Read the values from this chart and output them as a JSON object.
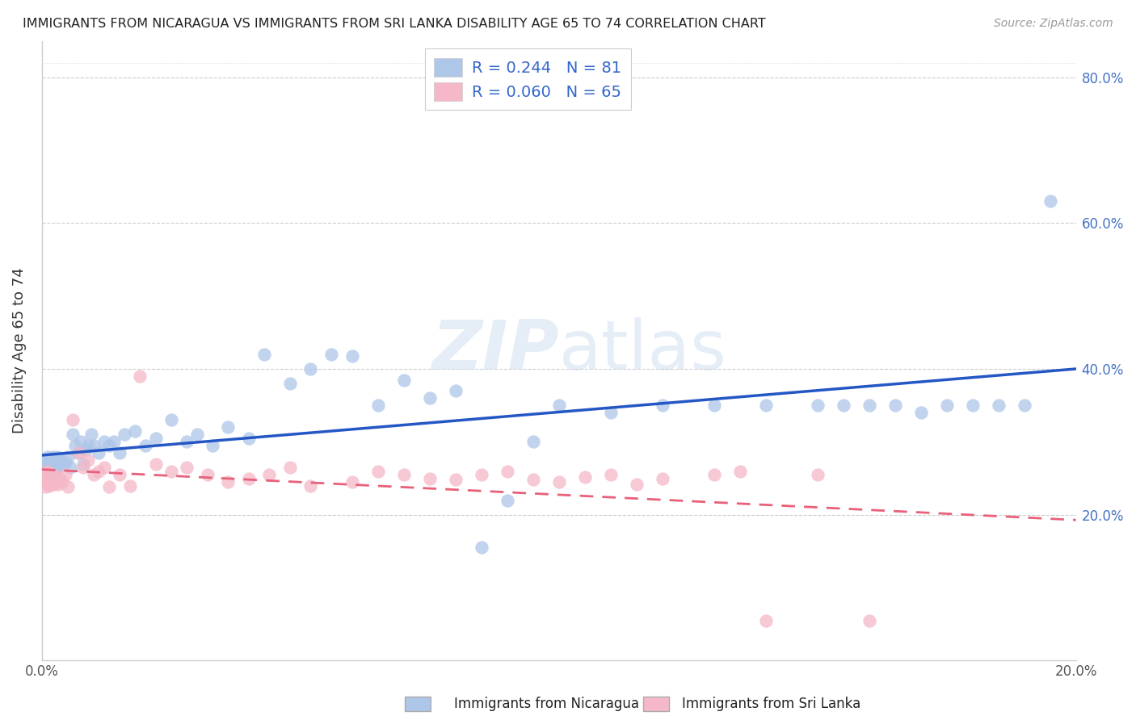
{
  "title": "IMMIGRANTS FROM NICARAGUA VS IMMIGRANTS FROM SRI LANKA DISABILITY AGE 65 TO 74 CORRELATION CHART",
  "source": "Source: ZipAtlas.com",
  "ylabel": "Disability Age 65 to 74",
  "xlim": [
    0.0,
    0.2
  ],
  "ylim": [
    0.0,
    0.85
  ],
  "nicaragua_R": 0.244,
  "nicaragua_N": 81,
  "srilanka_R": 0.06,
  "srilanka_N": 65,
  "nicaragua_color": "#aec6e8",
  "srilanka_color": "#f4b8c8",
  "nicaragua_line_color": "#2457c5",
  "srilanka_line_color": "#e8607a",
  "watermark_color": "#d0dff0",
  "nicaragua_x": [
    0.0005,
    0.0006,
    0.0007,
    0.0008,
    0.0009,
    0.001,
    0.0011,
    0.0012,
    0.0013,
    0.0014,
    0.0015,
    0.0016,
    0.0017,
    0.0018,
    0.0019,
    0.002,
    0.0021,
    0.0022,
    0.0023,
    0.0024,
    0.0025,
    0.0026,
    0.0028,
    0.003,
    0.0032,
    0.0035,
    0.004,
    0.0045,
    0.005,
    0.0055,
    0.006,
    0.0065,
    0.007,
    0.0075,
    0.008,
    0.0085,
    0.009,
    0.0095,
    0.01,
    0.011,
    0.012,
    0.013,
    0.014,
    0.015,
    0.016,
    0.018,
    0.02,
    0.022,
    0.025,
    0.028,
    0.03,
    0.033,
    0.036,
    0.04,
    0.043,
    0.048,
    0.052,
    0.056,
    0.06,
    0.065,
    0.07,
    0.075,
    0.08,
    0.085,
    0.09,
    0.095,
    0.1,
    0.11,
    0.12,
    0.13,
    0.14,
    0.15,
    0.155,
    0.16,
    0.165,
    0.17,
    0.175,
    0.18,
    0.185,
    0.19,
    0.195
  ],
  "nicaragua_y": [
    0.265,
    0.27,
    0.275,
    0.268,
    0.26,
    0.272,
    0.255,
    0.28,
    0.263,
    0.258,
    0.275,
    0.269,
    0.26,
    0.271,
    0.278,
    0.265,
    0.273,
    0.28,
    0.258,
    0.262,
    0.27,
    0.275,
    0.268,
    0.28,
    0.265,
    0.275,
    0.268,
    0.272,
    0.28,
    0.265,
    0.31,
    0.295,
    0.285,
    0.3,
    0.27,
    0.29,
    0.295,
    0.31,
    0.295,
    0.285,
    0.3,
    0.295,
    0.3,
    0.285,
    0.31,
    0.315,
    0.295,
    0.305,
    0.33,
    0.3,
    0.31,
    0.295,
    0.32,
    0.305,
    0.42,
    0.38,
    0.4,
    0.42,
    0.418,
    0.35,
    0.385,
    0.36,
    0.37,
    0.155,
    0.22,
    0.3,
    0.35,
    0.34,
    0.35,
    0.35,
    0.35,
    0.35,
    0.35,
    0.35,
    0.35,
    0.34,
    0.35,
    0.35,
    0.35,
    0.35,
    0.63
  ],
  "srilanka_x": [
    0.0005,
    0.0006,
    0.0007,
    0.0008,
    0.0009,
    0.001,
    0.0011,
    0.0012,
    0.0013,
    0.0014,
    0.0015,
    0.0016,
    0.0017,
    0.0018,
    0.0019,
    0.002,
    0.0021,
    0.0022,
    0.0024,
    0.0026,
    0.0028,
    0.003,
    0.0032,
    0.0035,
    0.004,
    0.0045,
    0.005,
    0.006,
    0.007,
    0.008,
    0.009,
    0.01,
    0.011,
    0.012,
    0.013,
    0.015,
    0.017,
    0.019,
    0.022,
    0.025,
    0.028,
    0.032,
    0.036,
    0.04,
    0.044,
    0.048,
    0.052,
    0.06,
    0.065,
    0.07,
    0.075,
    0.08,
    0.085,
    0.09,
    0.095,
    0.1,
    0.105,
    0.11,
    0.115,
    0.12,
    0.13,
    0.135,
    0.14,
    0.15,
    0.16
  ],
  "srilanka_y": [
    0.245,
    0.252,
    0.238,
    0.26,
    0.248,
    0.255,
    0.242,
    0.25,
    0.258,
    0.245,
    0.24,
    0.255,
    0.25,
    0.245,
    0.252,
    0.248,
    0.255,
    0.242,
    0.25,
    0.245,
    0.252,
    0.248,
    0.242,
    0.25,
    0.245,
    0.255,
    0.238,
    0.33,
    0.285,
    0.265,
    0.275,
    0.255,
    0.26,
    0.265,
    0.238,
    0.255,
    0.24,
    0.39,
    0.27,
    0.26,
    0.265,
    0.255,
    0.245,
    0.25,
    0.255,
    0.265,
    0.24,
    0.245,
    0.26,
    0.255,
    0.25,
    0.248,
    0.255,
    0.26,
    0.248,
    0.245,
    0.252,
    0.255,
    0.242,
    0.25,
    0.255,
    0.26,
    0.055,
    0.255,
    0.055
  ]
}
